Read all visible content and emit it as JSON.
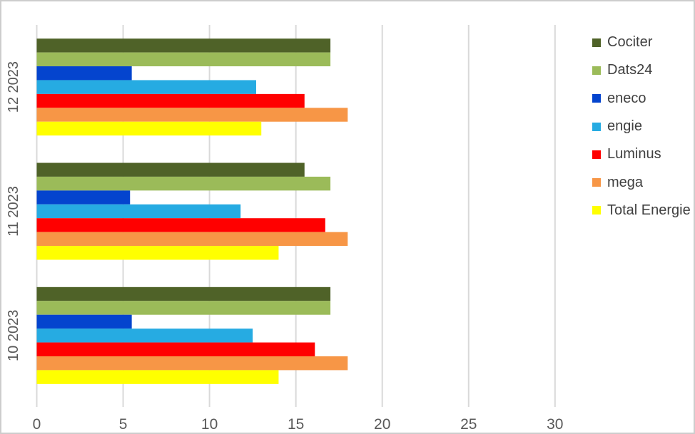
{
  "chart_data": {
    "type": "bar",
    "orientation": "horizontal",
    "title": "",
    "xlabel": "",
    "ylabel": "",
    "categories": [
      "12 2023",
      "11 2023",
      "10 2023"
    ],
    "series": [
      {
        "name": "Cociter",
        "color": "#4F6228",
        "values": [
          17,
          15.5,
          17
        ]
      },
      {
        "name": "Dats24",
        "color": "#9BBB59",
        "values": [
          17,
          17,
          17
        ]
      },
      {
        "name": "eneco",
        "color": "#0444CE",
        "values": [
          5.5,
          5.4,
          5.5
        ]
      },
      {
        "name": "engie",
        "color": "#26ABE2",
        "values": [
          12.7,
          11.8,
          12.5
        ]
      },
      {
        "name": "Luminus",
        "color": "#FF0000",
        "values": [
          15.5,
          16.7,
          16.1
        ]
      },
      {
        "name": "mega",
        "color": "#F79646",
        "values": [
          18,
          18,
          18
        ]
      },
      {
        "name": "Total Energie",
        "color": "#FFFF00",
        "values": [
          13,
          14,
          14
        ]
      }
    ],
    "xlim": [
      0,
      30
    ],
    "x_ticks": [
      0,
      5,
      10,
      15,
      20,
      25,
      30
    ],
    "x_tick_labels": [
      "0",
      "5",
      "10",
      "15",
      "20",
      "25",
      "30"
    ],
    "grid": "vertical-only",
    "legend_position": "right",
    "grid_color": "#D9D9D9",
    "axis_text_color": "#595959",
    "legend_text_color": "#404040",
    "frame_border_color": "#CDCDCD",
    "background_color": "#FFFFFF"
  }
}
